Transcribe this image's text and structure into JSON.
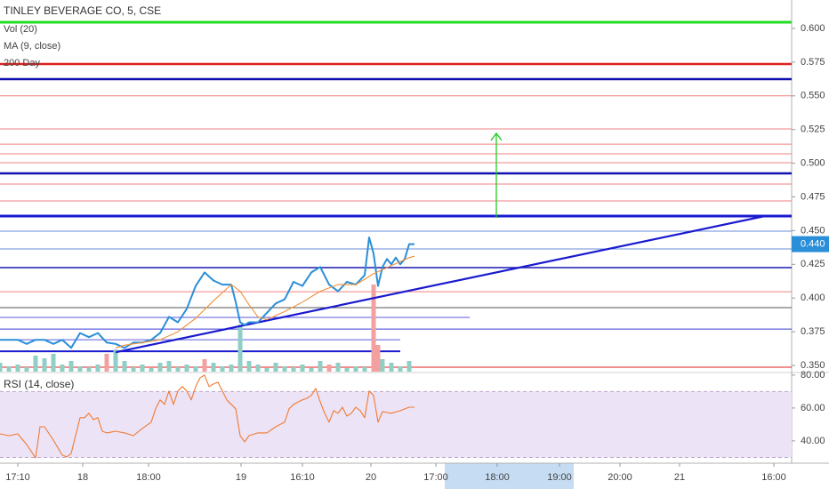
{
  "chart_data": [
    {
      "type": "line",
      "title": "TINLEY BEVERAGE CO, 5, CSE",
      "annotations": [
        "Vol (20)",
        "MA (9, close)",
        "200 Day"
      ],
      "xlim": [
        0,
        89
      ],
      "xticks": [
        {
          "value": 2,
          "label": "17:10"
        },
        {
          "value": 9.3,
          "label": "18"
        },
        {
          "value": 16.7,
          "label": "18:00"
        },
        {
          "value": 27.1,
          "label": "19"
        },
        {
          "value": 34,
          "label": "16:10"
        },
        {
          "value": 41.7,
          "label": "20"
        },
        {
          "value": 49,
          "label": "17:00"
        },
        {
          "value": 55.9,
          "label": "18:00"
        },
        {
          "value": 62.9,
          "label": "19:00"
        },
        {
          "value": 69.7,
          "label": "20:00"
        },
        {
          "value": 76.4,
          "label": "21"
        },
        {
          "value": 87,
          "label": "16:00"
        }
      ],
      "ylim": [
        0.3454,
        0.6211
      ],
      "yticks": [
        {
          "value": 0.6,
          "label": "0.600"
        },
        {
          "value": 0.575,
          "label": "0.575"
        },
        {
          "value": 0.55,
          "label": "0.550"
        },
        {
          "value": 0.525,
          "label": "0.525"
        },
        {
          "value": 0.5,
          "label": "0.500"
        },
        {
          "value": 0.475,
          "label": "0.475"
        },
        {
          "value": 0.45,
          "label": "0.450"
        },
        {
          "value": 0.425,
          "label": "0.425"
        },
        {
          "value": 0.4,
          "label": "0.400"
        },
        {
          "value": 0.375,
          "label": "0.375"
        },
        {
          "value": 0.35,
          "label": "0.350"
        }
      ],
      "series": [
        {
          "color": "#2a8fd8",
          "x": [
            0,
            1,
            2,
            3,
            4,
            5,
            6,
            7,
            8,
            9,
            10,
            11,
            12,
            13,
            14,
            15,
            16,
            17,
            18,
            19,
            20,
            21,
            22,
            23,
            24,
            25,
            26,
            26.5,
            27,
            27.5,
            28,
            29,
            30,
            31,
            32,
            33,
            34,
            35,
            36,
            37,
            38,
            39,
            40,
            41,
            41.5,
            42,
            42.5,
            43,
            43.5,
            44,
            44.5,
            45,
            45.5,
            46,
            46.6
          ],
          "values": [
            0.369,
            0.369,
            0.369,
            0.366,
            0.369,
            0.369,
            0.366,
            0.369,
            0.363,
            0.374,
            0.371,
            0.374,
            0.367,
            0.366,
            0.363,
            0.367,
            0.367,
            0.369,
            0.374,
            0.386,
            0.382,
            0.392,
            0.409,
            0.419,
            0.413,
            0.41,
            0.41,
            0.397,
            0.382,
            0.38,
            0.382,
            0.382,
            0.389,
            0.396,
            0.399,
            0.412,
            0.409,
            0.419,
            0.423,
            0.41,
            0.405,
            0.412,
            0.41,
            0.417,
            0.445,
            0.433,
            0.409,
            0.423,
            0.429,
            0.425,
            0.43,
            0.425,
            0.429,
            0.44,
            0.44
          ]
        },
        {
          "name": "MA (9, close)",
          "color": "#f0903a",
          "x": [
            13,
            14,
            16,
            18,
            20,
            22,
            24,
            26,
            27,
            28,
            29,
            30,
            32,
            34,
            36,
            38,
            40,
            42,
            44,
            46,
            46.6
          ],
          "values": [
            0.363,
            0.365,
            0.367,
            0.369,
            0.375,
            0.385,
            0.398,
            0.41,
            0.405,
            0.395,
            0.386,
            0.384,
            0.39,
            0.397,
            0.405,
            0.41,
            0.41,
            0.418,
            0.424,
            0.43,
            0.431
          ]
        }
      ],
      "volume": {
        "name": "Vol (20)",
        "ylim": [
          0,
          120
        ],
        "x": [
          0,
          1,
          2,
          3,
          4,
          5,
          6,
          7,
          8,
          9,
          10,
          11,
          12,
          13,
          14,
          15,
          16,
          17,
          18,
          19,
          20,
          21,
          22,
          23,
          24,
          25,
          26,
          27,
          28,
          29,
          30,
          31,
          32,
          33,
          34,
          35,
          36,
          37,
          38,
          39,
          40,
          41,
          42,
          42.5,
          43,
          44,
          45,
          46
        ],
        "values": [
          10,
          6,
          8,
          5,
          18,
          15,
          20,
          8,
          12,
          6,
          5,
          8,
          20,
          25,
          12,
          5,
          8,
          4,
          10,
          12,
          5,
          8,
          6,
          14,
          10,
          6,
          8,
          53,
          12,
          8,
          4,
          10,
          6,
          5,
          8,
          4,
          12,
          8,
          10,
          4,
          6,
          5,
          98,
          30,
          14,
          10,
          6,
          12
        ],
        "colors": [
          "#8fcfc6",
          "#8fcfc6",
          "#8fcfc6",
          "#8fcfc6",
          "#8fcfc6",
          "#8fcfc6",
          "#8fcfc6",
          "#8fcfc6",
          "#8fcfc6",
          "#8fcfc6",
          "#8fcfc6",
          "#8fcfc6",
          "#f2a0a0",
          "#8fcfc6",
          "#8fcfc6",
          "#8fcfc6",
          "#8fcfc6",
          "#8fcfc6",
          "#8fcfc6",
          "#8fcfc6",
          "#8fcfc6",
          "#8fcfc6",
          "#8fcfc6",
          "#f2a0a0",
          "#8fcfc6",
          "#8fcfc6",
          "#8fcfc6",
          "#8fcfc6",
          "#8fcfc6",
          "#8fcfc6",
          "#8fcfc6",
          "#8fcfc6",
          "#8fcfc6",
          "#8fcfc6",
          "#8fcfc6",
          "#8fcfc6",
          "#8fcfc6",
          "#f2a0a0",
          "#8fcfc6",
          "#8fcfc6",
          "#8fcfc6",
          "#8fcfc6",
          "#f2a0a0",
          "#f2a0a0",
          "#8fcfc6",
          "#8fcfc6",
          "#8fcfc6",
          "#8fcfc6"
        ]
      },
      "hlines": [
        {
          "value": 0.6046,
          "color": "#22dd22",
          "width": 3
        },
        {
          "value": 0.5736,
          "color": "#e02020",
          "width": 2.5
        },
        {
          "value": 0.5624,
          "color": "#1010b0",
          "width": 2.5
        },
        {
          "value": 0.55,
          "color": "#f08080",
          "width": 1
        },
        {
          "value": 0.5255,
          "color": "#f08080",
          "width": 1
        },
        {
          "value": 0.5142,
          "color": "#f08080",
          "width": 1
        },
        {
          "value": 0.507,
          "color": "#f08080",
          "width": 1
        },
        {
          "value": 0.5004,
          "color": "#f08080",
          "width": 1
        },
        {
          "value": 0.4925,
          "color": "#1010b0",
          "width": 2.5
        },
        {
          "value": 0.4846,
          "color": "#f08080",
          "width": 1
        },
        {
          "value": 0.472,
          "color": "#f08080",
          "width": 1
        },
        {
          "value": 0.4608,
          "color": "#1a1ad0",
          "width": 3
        },
        {
          "value": 0.4496,
          "color": "#6a8ed8",
          "width": 1
        },
        {
          "value": 0.4364,
          "color": "#6a8ed8",
          "width": 1
        },
        {
          "value": 0.4226,
          "color": "#1a1ab0",
          "width": 1.5
        },
        {
          "value": 0.4047,
          "color": "#f08080",
          "width": 1
        },
        {
          "value": 0.3929,
          "color": "#555555",
          "width": 1
        },
        {
          "value": 0.3856,
          "color": "#5a5ae0",
          "width": 1,
          "x_end": 52.8
        },
        {
          "value": 0.377,
          "color": "#3a3ad0",
          "width": 1
        },
        {
          "value": 0.3691,
          "color": "#5a5ae0",
          "width": 1,
          "x_end": 45
        },
        {
          "value": 0.3605,
          "color": "#1a1ad0",
          "width": 2,
          "x_end": 45
        },
        {
          "value": 0.3487,
          "color": "#e02020",
          "width": 1
        }
      ],
      "trendline": {
        "color": "#1a1ad0",
        "x": [
          13,
          86
        ],
        "values": [
          0.3598,
          0.4608
        ]
      },
      "arrow": {
        "color": "#22cc22",
        "x": [
          55.8,
          55.8
        ],
        "values": [
          0.4595,
          0.5222
        ]
      },
      "last_price": {
        "value": 0.44,
        "label": "0.440",
        "color": "#2a8fd8"
      }
    },
    {
      "type": "line",
      "title": "RSI (14, close)",
      "ylim": [
        27,
        81
      ],
      "yticks": [
        {
          "value": 80,
          "label": "80.00"
        },
        {
          "value": 60,
          "label": "60.00"
        },
        {
          "value": 40,
          "label": "40.00"
        }
      ],
      "band": [
        30,
        70
      ],
      "series": [
        {
          "color": "#f07a30",
          "x": [
            0,
            1,
            2,
            3,
            4,
            4.5,
            5,
            6,
            7,
            7.5,
            8,
            9,
            9.5,
            10,
            10.5,
            11,
            11.5,
            12,
            13,
            14,
            15,
            16,
            17,
            17.5,
            18,
            18.5,
            19,
            19.5,
            20,
            20.5,
            21,
            21.5,
            22,
            22.5,
            23,
            23.5,
            24,
            24.5,
            25,
            25.5,
            26,
            26.5,
            27,
            27.5,
            28,
            29,
            30,
            31,
            32,
            32.5,
            33,
            34,
            34.5,
            35,
            35.5,
            36,
            36.5,
            37,
            37.5,
            38,
            38.5,
            39,
            39.5,
            40,
            40.5,
            41,
            41.5,
            42,
            42.5,
            43,
            44,
            45,
            46,
            46.6
          ],
          "values": [
            44.3,
            43.2,
            44.3,
            37.8,
            29.7,
            48.6,
            48.6,
            40.5,
            31.4,
            30.3,
            32.4,
            54.1,
            54.1,
            56.8,
            53,
            54.1,
            45.9,
            44.9,
            45.9,
            44.9,
            43.2,
            47.6,
            51.4,
            59.5,
            64.9,
            62.2,
            70.3,
            62.2,
            70.3,
            73,
            70.3,
            64.9,
            73,
            78.4,
            80,
            73,
            74.6,
            75.7,
            70.3,
            64.9,
            62.2,
            59.5,
            43.2,
            39.5,
            43.2,
            44.9,
            44.9,
            48.6,
            51.4,
            59.5,
            62.2,
            64.9,
            65.9,
            67.6,
            71.9,
            63.8,
            56.8,
            51.4,
            58.4,
            56.8,
            60.5,
            55.1,
            56.8,
            60.5,
            58.4,
            54.1,
            70.3,
            67.6,
            51.4,
            57.8,
            56.8,
            58.4,
            60.5,
            60.5
          ]
        }
      ]
    }
  ]
}
